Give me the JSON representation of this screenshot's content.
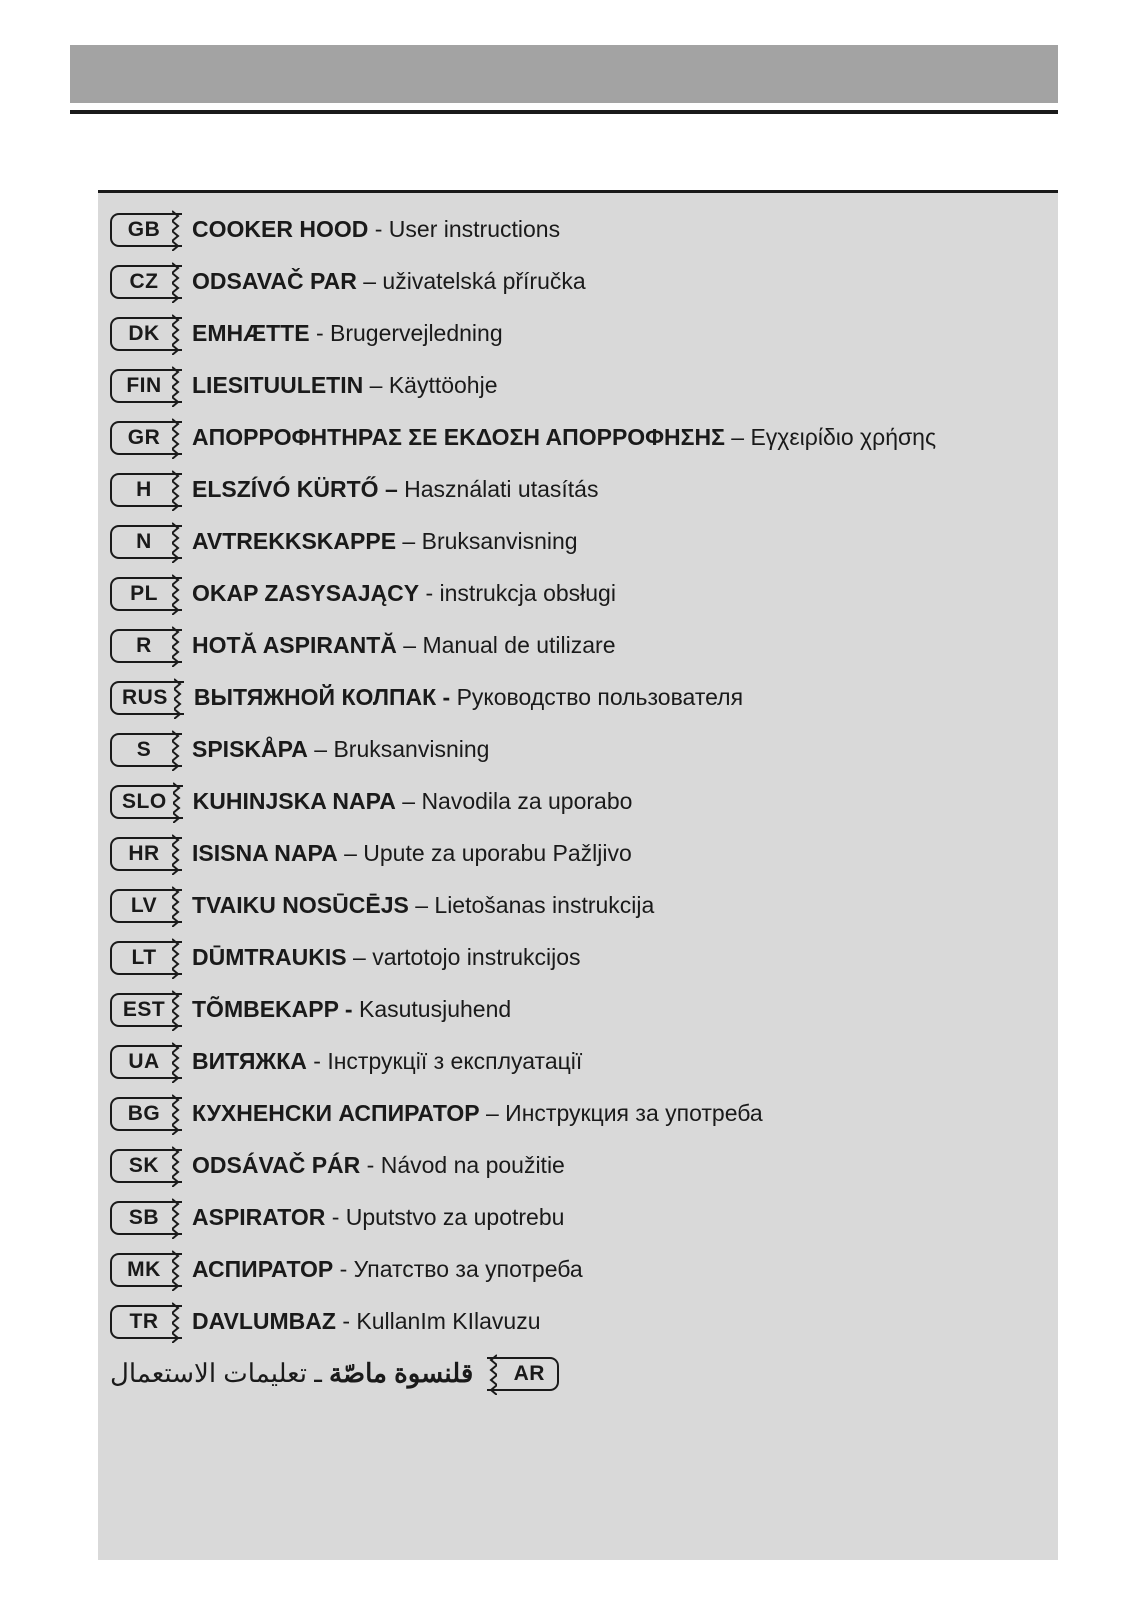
{
  "colors": {
    "page_bg": "#ffffff",
    "header_band": "#a3a3a3",
    "rule": "#1a1a1a",
    "content_bg": "#d9d9d9",
    "text": "#1a1a1a",
    "tag_border": "#1a1a1a"
  },
  "typography": {
    "tag_fontsize": 21,
    "tag_weight": 700,
    "title_fontsize": 23,
    "title_weight": 700,
    "desc_fontsize": 23,
    "desc_weight": 400,
    "rtl_fontsize": 26
  },
  "layout": {
    "row_height": 45.5,
    "tag_height": 34,
    "tag_min_width": 62,
    "tag_radius": 9,
    "tag_border_width": 2
  },
  "entries": [
    {
      "code": "GB",
      "title": "COOKER HOOD",
      "sep": " - ",
      "desc": "User instructions",
      "rtl": false
    },
    {
      "code": "CZ",
      "title": "ODSAVAČ PAR",
      "sep": " – ",
      "desc": "uživatelská příručka",
      "rtl": false
    },
    {
      "code": "DK",
      "title": "EMHÆTTE",
      "sep": " - ",
      "desc": "Brugervejledning",
      "rtl": false
    },
    {
      "code": "FIN",
      "title": "LIESITUULETIN",
      "sep": " – ",
      "desc": "Käyttöohje",
      "rtl": false
    },
    {
      "code": "GR",
      "title": "ΑΠΟΡΡΟΦΗΤΗΡΑΣ ΣΕ ΕΚΔΟΣΗ ΑΠΟΡΡΟΦΗΣΗΣ",
      "sep": " – ",
      "desc": "Εγχειρίδιο χρήσης",
      "rtl": false
    },
    {
      "code": "H",
      "title": "ELSZÍVÓ KÜRTŐ –",
      "sep": " ",
      "desc": "Használati utasítás",
      "rtl": false
    },
    {
      "code": "N",
      "title": "AVTREKKSKAPPE",
      "sep": " – ",
      "desc": "Bruksanvisning",
      "rtl": false
    },
    {
      "code": "PL",
      "title": "OKAP ZASYSAJĄCY",
      "sep": " - ",
      "desc": "instrukcja obsługi",
      "rtl": false
    },
    {
      "code": "R",
      "title": "HOTĂ ASPIRANTĂ",
      "sep": " – ",
      "desc": "Manual de utilizare",
      "rtl": false
    },
    {
      "code": "RUS",
      "title": "ВЫТЯЖНОЙ КОЛПАК -",
      "sep": " ",
      "desc": "Руководство пользователя",
      "rtl": false
    },
    {
      "code": "S",
      "title": "SPISKÅPA",
      "sep": " – ",
      "desc": "Bruksanvisning",
      "rtl": false
    },
    {
      "code": "SLO",
      "title": "KUHINJSKA NAPA",
      "sep": " – ",
      "desc": "Navodila za uporabo",
      "rtl": false
    },
    {
      "code": "HR",
      "title": "ISISNA NAPA",
      "sep": " – ",
      "desc": "Upute za uporabu Pažljivo",
      "rtl": false
    },
    {
      "code": "LV",
      "title": "TVAIKU NOSŪCĒJS",
      "sep": " – ",
      "desc": "Lietošanas instrukcija",
      "rtl": false
    },
    {
      "code": "LT",
      "title": "DŪMTRAUKIS",
      "sep": " – ",
      "desc": "vartotojo instrukcijos",
      "rtl": false
    },
    {
      "code": "EST",
      "title": "TÕMBEKAPP -",
      "sep": "  ",
      "desc": "Kasutusjuhend",
      "rtl": false
    },
    {
      "code": "UA",
      "title": "ВИТЯЖКА",
      "sep": " - ",
      "desc": "Інструкції з експлуатації",
      "rtl": false
    },
    {
      "code": "BG",
      "title": "КУХНЕНСКИ АСПИРАТОР",
      "sep": " – ",
      "desc": "Инструкция за употреба",
      "rtl": false
    },
    {
      "code": "SK",
      "title": "ODSÁVAČ PÁR",
      "sep": " - ",
      "desc": "Návod na použitie",
      "rtl": false
    },
    {
      "code": "SB",
      "title": "ASPIRATOR",
      "sep": " - ",
      "desc": "Uputstvo za upotrebu",
      "rtl": false
    },
    {
      "code": "MK",
      "title": "АСПИРАТОР",
      "sep": " - ",
      "desc": "Упатство за употреба",
      "rtl": false
    },
    {
      "code": "TR",
      "title": "DAVLUMBAZ",
      "sep": " - ",
      "desc": "KullanIm KIlavuzu",
      "rtl": false
    },
    {
      "code": "AR",
      "title": "قلنسوة ماصّة",
      "sep": " ـ ",
      "desc": "تعليمات الاستعمال",
      "rtl": true
    }
  ]
}
